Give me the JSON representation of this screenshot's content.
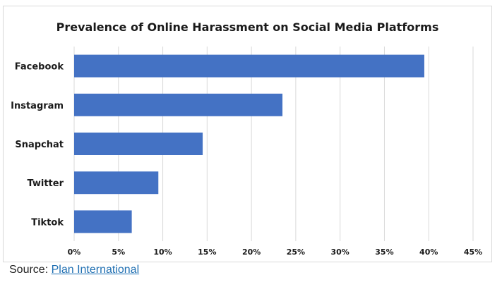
{
  "chart_data": {
    "type": "bar",
    "orientation": "horizontal",
    "title": "Prevalence of Online Harassment on Social Media Platforms",
    "categories": [
      "Facebook",
      "Instagram",
      "Snapchat",
      "Twitter",
      "Tiktok"
    ],
    "values": [
      39.5,
      23.5,
      14.5,
      9.5,
      6.5
    ],
    "xlim": [
      0,
      45
    ],
    "xticks": [
      0,
      5,
      10,
      15,
      20,
      25,
      30,
      35,
      40,
      45
    ],
    "tick_labels": [
      "0%",
      "5%",
      "10%",
      "15%",
      "20%",
      "25%",
      "30%",
      "35%",
      "40%",
      "45%"
    ],
    "grid": true,
    "bar_color": "#4472c4",
    "grid_color": "#d9d9d9"
  },
  "footer": {
    "source_label": "Source:",
    "source_link": "Plan International"
  }
}
